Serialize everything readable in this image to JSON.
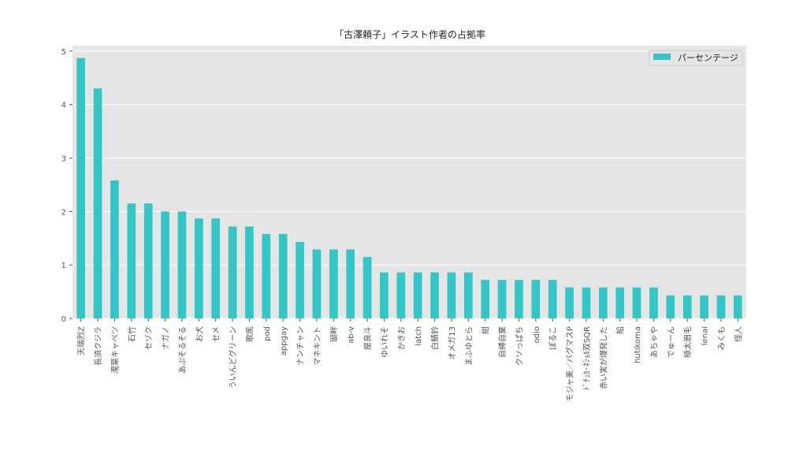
{
  "chart_data": {
    "type": "bar",
    "title": "「古澤頼子」イラスト作者の占拠率",
    "xlabel": "",
    "ylabel": "",
    "ylim": [
      0,
      5.1
    ],
    "yticks": [
      0,
      1,
      2,
      3,
      4,
      5
    ],
    "grid": true,
    "legend_position": "top-right",
    "colors": {
      "bar": "#33c6c6",
      "plot_bg": "#e5e5e5",
      "grid": "#ffffff"
    },
    "categories": [
      "天瑞烈Z",
      "長須クジラ",
      "濁葉キャベツ",
      "石竹",
      "セゾク",
      "ナガノ",
      "あぷそるそる",
      "お犬",
      "セメ",
      "ういんどグリーン",
      "歌風",
      "pod",
      "appgay",
      "ナンチャン",
      "マネキント",
      "瑚畔",
      "ab-v",
      "屋良斗",
      "ゆいれそ",
      "かきお",
      "latch",
      "白鯖鈴",
      "オメガ13",
      "まふゆとら",
      "紺",
      "自縛自棄",
      "クソっぱち",
      "odio",
      "ぽるこ",
      "モジャ美／バグマスP",
      "ﾄﾞﾁｭｶ･ﾈｼｮﾙ双SQR",
      "赤い実が爆発した",
      "船",
      "hutikoma",
      "あちゃや",
      "でゅーん",
      "極太眉毛",
      "lenai",
      "みくも",
      "怪人"
    ],
    "series": [
      {
        "name": "パーセンテージ",
        "values": [
          4.87,
          4.3,
          2.58,
          2.15,
          2.15,
          2.0,
          2.0,
          1.87,
          1.87,
          1.72,
          1.72,
          1.58,
          1.58,
          1.43,
          1.29,
          1.29,
          1.29,
          1.15,
          0.86,
          0.86,
          0.86,
          0.86,
          0.86,
          0.86,
          0.72,
          0.72,
          0.72,
          0.72,
          0.72,
          0.58,
          0.58,
          0.58,
          0.58,
          0.58,
          0.58,
          0.43,
          0.43,
          0.43,
          0.43,
          0.43
        ]
      }
    ]
  }
}
